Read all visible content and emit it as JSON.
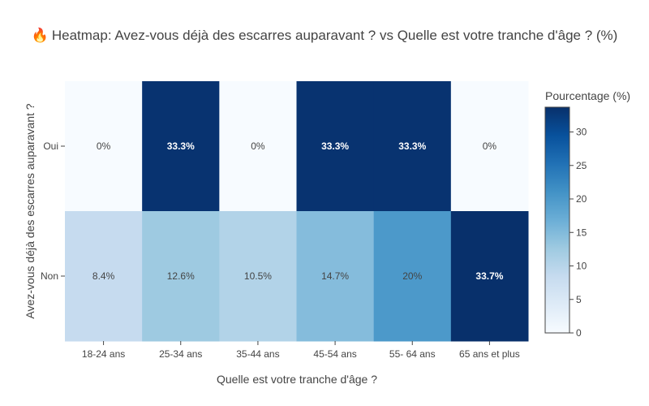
{
  "chart_data": {
    "type": "heatmap",
    "title_icon": "fire-icon",
    "title": "Heatmap: Avez-vous déjà des escarres auparavant ? vs Quelle est votre tranche d'âge ? (%)",
    "xlabel": "Quelle est votre tranche d'âge ?",
    "ylabel": "Avez-vous déjà des escarres auparavant ?",
    "x_categories": [
      "18-24 ans",
      "25-34 ans",
      "35-44 ans",
      "45-54 ans",
      "55- 64 ans",
      "65 ans et plus"
    ],
    "y_categories": [
      "Oui",
      "Non"
    ],
    "values": [
      [
        0,
        33.3,
        0,
        33.3,
        33.3,
        0
      ],
      [
        8.4,
        12.6,
        10.5,
        14.7,
        20,
        33.7
      ]
    ],
    "cell_labels": [
      [
        "0%",
        "33.3%",
        "0%",
        "33.3%",
        "33.3%",
        "0%"
      ],
      [
        "8.4%",
        "12.6%",
        "10.5%",
        "14.7%",
        "20%",
        "33.7%"
      ]
    ],
    "colorbar": {
      "title": "Pourcentage (%)",
      "range": [
        0,
        33.7
      ],
      "ticks": [
        0,
        5,
        10,
        15,
        20,
        25,
        30
      ],
      "colorscale": [
        "#f7fbff",
        "#deebf7",
        "#c6dbef",
        "#9ecae1",
        "#6baed6",
        "#4292c6",
        "#2171b5",
        "#08519c",
        "#08306b"
      ]
    },
    "colors": {
      "text_dark": "#444444",
      "text_light": "#ffffff"
    }
  }
}
